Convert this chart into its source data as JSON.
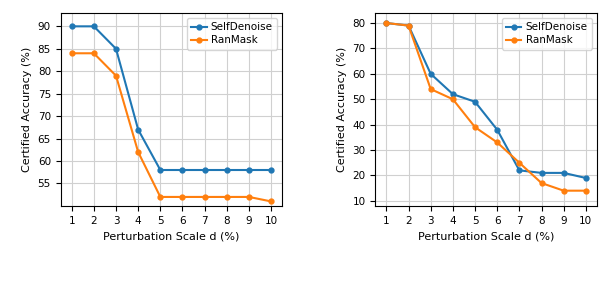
{
  "x": [
    1,
    2,
    3,
    4,
    5,
    6,
    7,
    8,
    9,
    10
  ],
  "left_self_denoise": [
    90,
    90,
    85,
    67,
    58,
    58,
    58,
    58,
    58,
    58
  ],
  "left_ran_mask": [
    84,
    84,
    79,
    62,
    52,
    52,
    52,
    52,
    52,
    51
  ],
  "right_self_denoise": [
    80,
    79,
    60,
    52,
    49,
    38,
    22,
    21,
    21,
    19
  ],
  "right_ran_mask": [
    80,
    79,
    54,
    50,
    39,
    33,
    25,
    17,
    14,
    14
  ],
  "left_ylim": [
    50,
    93
  ],
  "left_yticks": [
    55,
    60,
    65,
    70,
    75,
    80,
    85,
    90
  ],
  "right_ylim": [
    8,
    84
  ],
  "right_yticks": [
    10,
    20,
    30,
    40,
    50,
    60,
    70,
    80
  ],
  "xlabel": "Perturbation Scale d (%)",
  "ylabel": "Certified Accuracy (%)",
  "color_self_denoise": "#1f77b4",
  "color_ran_mask": "#ff7f0e",
  "legend_labels": [
    "SelfDenoise",
    "RanMask"
  ],
  "marker": "o",
  "markersize": 3.5,
  "linewidth": 1.5,
  "grid_color": "#d0d0d0",
  "grid_linewidth": 0.8
}
